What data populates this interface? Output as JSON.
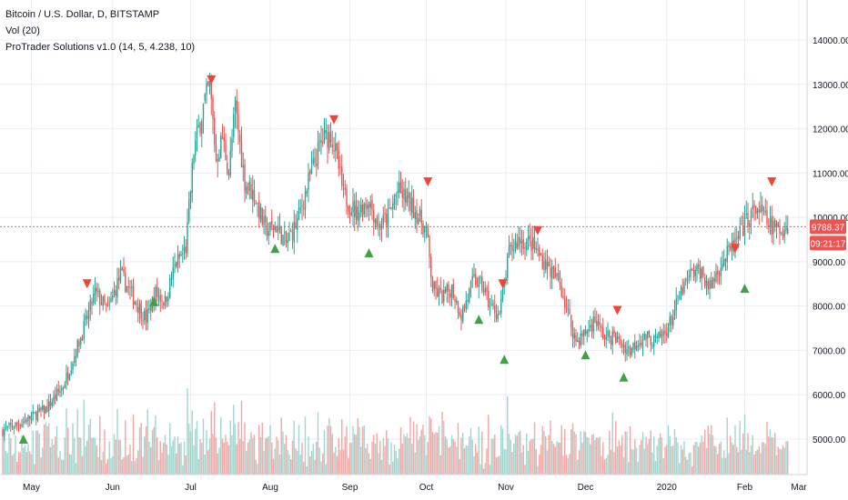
{
  "legend": {
    "title": "Bitcoin / U.S. Dollar, D, BITSTAMP",
    "volume": "Vol (20)",
    "indicator": "ProTrader Solutions v1.0 (14, 5, 4.238, 10)"
  },
  "colors": {
    "up": "#26a69a",
    "down": "#ef5350",
    "volume_up": "#9fd6cf",
    "volume_down": "#f5a5a3",
    "buy_signal": "#43a047",
    "sell_signal": "#f44336",
    "price_line": "#ef5350",
    "grid": "#e8eef4"
  },
  "chart_data": {
    "type": "candlestick",
    "ylim": [
      4200,
      14800
    ],
    "y_ticks": [
      "5000.00",
      "6000.00",
      "7000.00",
      "8000.00",
      "9000.00",
      "10000.00",
      "11000.00",
      "12000.00",
      "13000.00",
      "14000.00"
    ],
    "x_ticks": [
      "May",
      "Jun",
      "Jul",
      "Aug",
      "Sep",
      "Oct",
      "Nov",
      "Dec",
      "2020",
      "Feb",
      "Mar"
    ],
    "last_price": "9788.37",
    "countdown": "09:21:17",
    "close_path": [
      [
        0,
        5200
      ],
      [
        10,
        5350
      ],
      [
        18,
        5500
      ],
      [
        28,
        5700
      ],
      [
        38,
        6200
      ],
      [
        50,
        7400
      ],
      [
        58,
        8300
      ],
      [
        66,
        7900
      ],
      [
        74,
        8700
      ],
      [
        82,
        8200
      ],
      [
        90,
        7700
      ],
      [
        96,
        8300
      ],
      [
        102,
        8100
      ],
      [
        108,
        8900
      ],
      [
        115,
        9300
      ],
      [
        120,
        11500
      ],
      [
        126,
        12500
      ],
      [
        130,
        13000
      ],
      [
        134,
        11300
      ],
      [
        138,
        11800
      ],
      [
        142,
        11000
      ],
      [
        146,
        12500
      ],
      [
        152,
        10800
      ],
      [
        158,
        10500
      ],
      [
        165,
        9700
      ],
      [
        172,
        9800
      ],
      [
        178,
        9400
      ],
      [
        185,
        9900
      ],
      [
        192,
        10800
      ],
      [
        200,
        11700
      ],
      [
        206,
        11900
      ],
      [
        210,
        11300
      ],
      [
        214,
        10500
      ],
      [
        222,
        10100
      ],
      [
        230,
        10400
      ],
      [
        236,
        9800
      ],
      [
        242,
        10000
      ],
      [
        248,
        10600
      ],
      [
        254,
        10400
      ],
      [
        260,
        10100
      ],
      [
        266,
        9700
      ],
      [
        270,
        8400
      ],
      [
        276,
        8200
      ],
      [
        282,
        8400
      ],
      [
        288,
        7800
      ],
      [
        296,
        8600
      ],
      [
        302,
        8400
      ],
      [
        306,
        8000
      ],
      [
        312,
        7800
      ],
      [
        318,
        9200
      ],
      [
        324,
        9500
      ],
      [
        332,
        9400
      ],
      [
        338,
        9100
      ],
      [
        344,
        8800
      ],
      [
        350,
        8500
      ],
      [
        356,
        7700
      ],
      [
        360,
        7200
      ],
      [
        366,
        7400
      ],
      [
        372,
        7700
      ],
      [
        378,
        7300
      ],
      [
        384,
        7300
      ],
      [
        390,
        7100
      ],
      [
        394,
        7000
      ],
      [
        398,
        7200
      ],
      [
        404,
        7300
      ],
      [
        410,
        7200
      ],
      [
        416,
        7400
      ],
      [
        420,
        7700
      ],
      [
        426,
        8300
      ],
      [
        432,
        8700
      ],
      [
        438,
        8800
      ],
      [
        444,
        8400
      ],
      [
        450,
        8900
      ],
      [
        456,
        9200
      ],
      [
        462,
        9500
      ],
      [
        468,
        10000
      ],
      [
        474,
        10200
      ],
      [
        478,
        10000
      ],
      [
        482,
        9800
      ],
      [
        488,
        9700
      ],
      [
        492,
        9800
      ]
    ],
    "sell_signals": [
      {
        "day": 53,
        "value": 8500
      },
      {
        "day": 131,
        "value": 13100
      },
      {
        "day": 208,
        "value": 12200
      },
      {
        "day": 267,
        "value": 10800
      },
      {
        "day": 314,
        "value": 8500
      },
      {
        "day": 336,
        "value": 9700
      },
      {
        "day": 386,
        "value": 7900
      },
      {
        "day": 460,
        "value": 9300
      },
      {
        "day": 483,
        "value": 10800
      }
    ],
    "buy_signals": [
      {
        "day": 13,
        "value": 5000
      },
      {
        "day": 95,
        "value": 8100
      },
      {
        "day": 171,
        "value": 9300
      },
      {
        "day": 230,
        "value": 9200
      },
      {
        "day": 299,
        "value": 7700
      },
      {
        "day": 315,
        "value": 6800
      },
      {
        "day": 366,
        "value": 6900
      },
      {
        "day": 390,
        "value": 6400
      },
      {
        "day": 466,
        "value": 8400
      }
    ]
  }
}
